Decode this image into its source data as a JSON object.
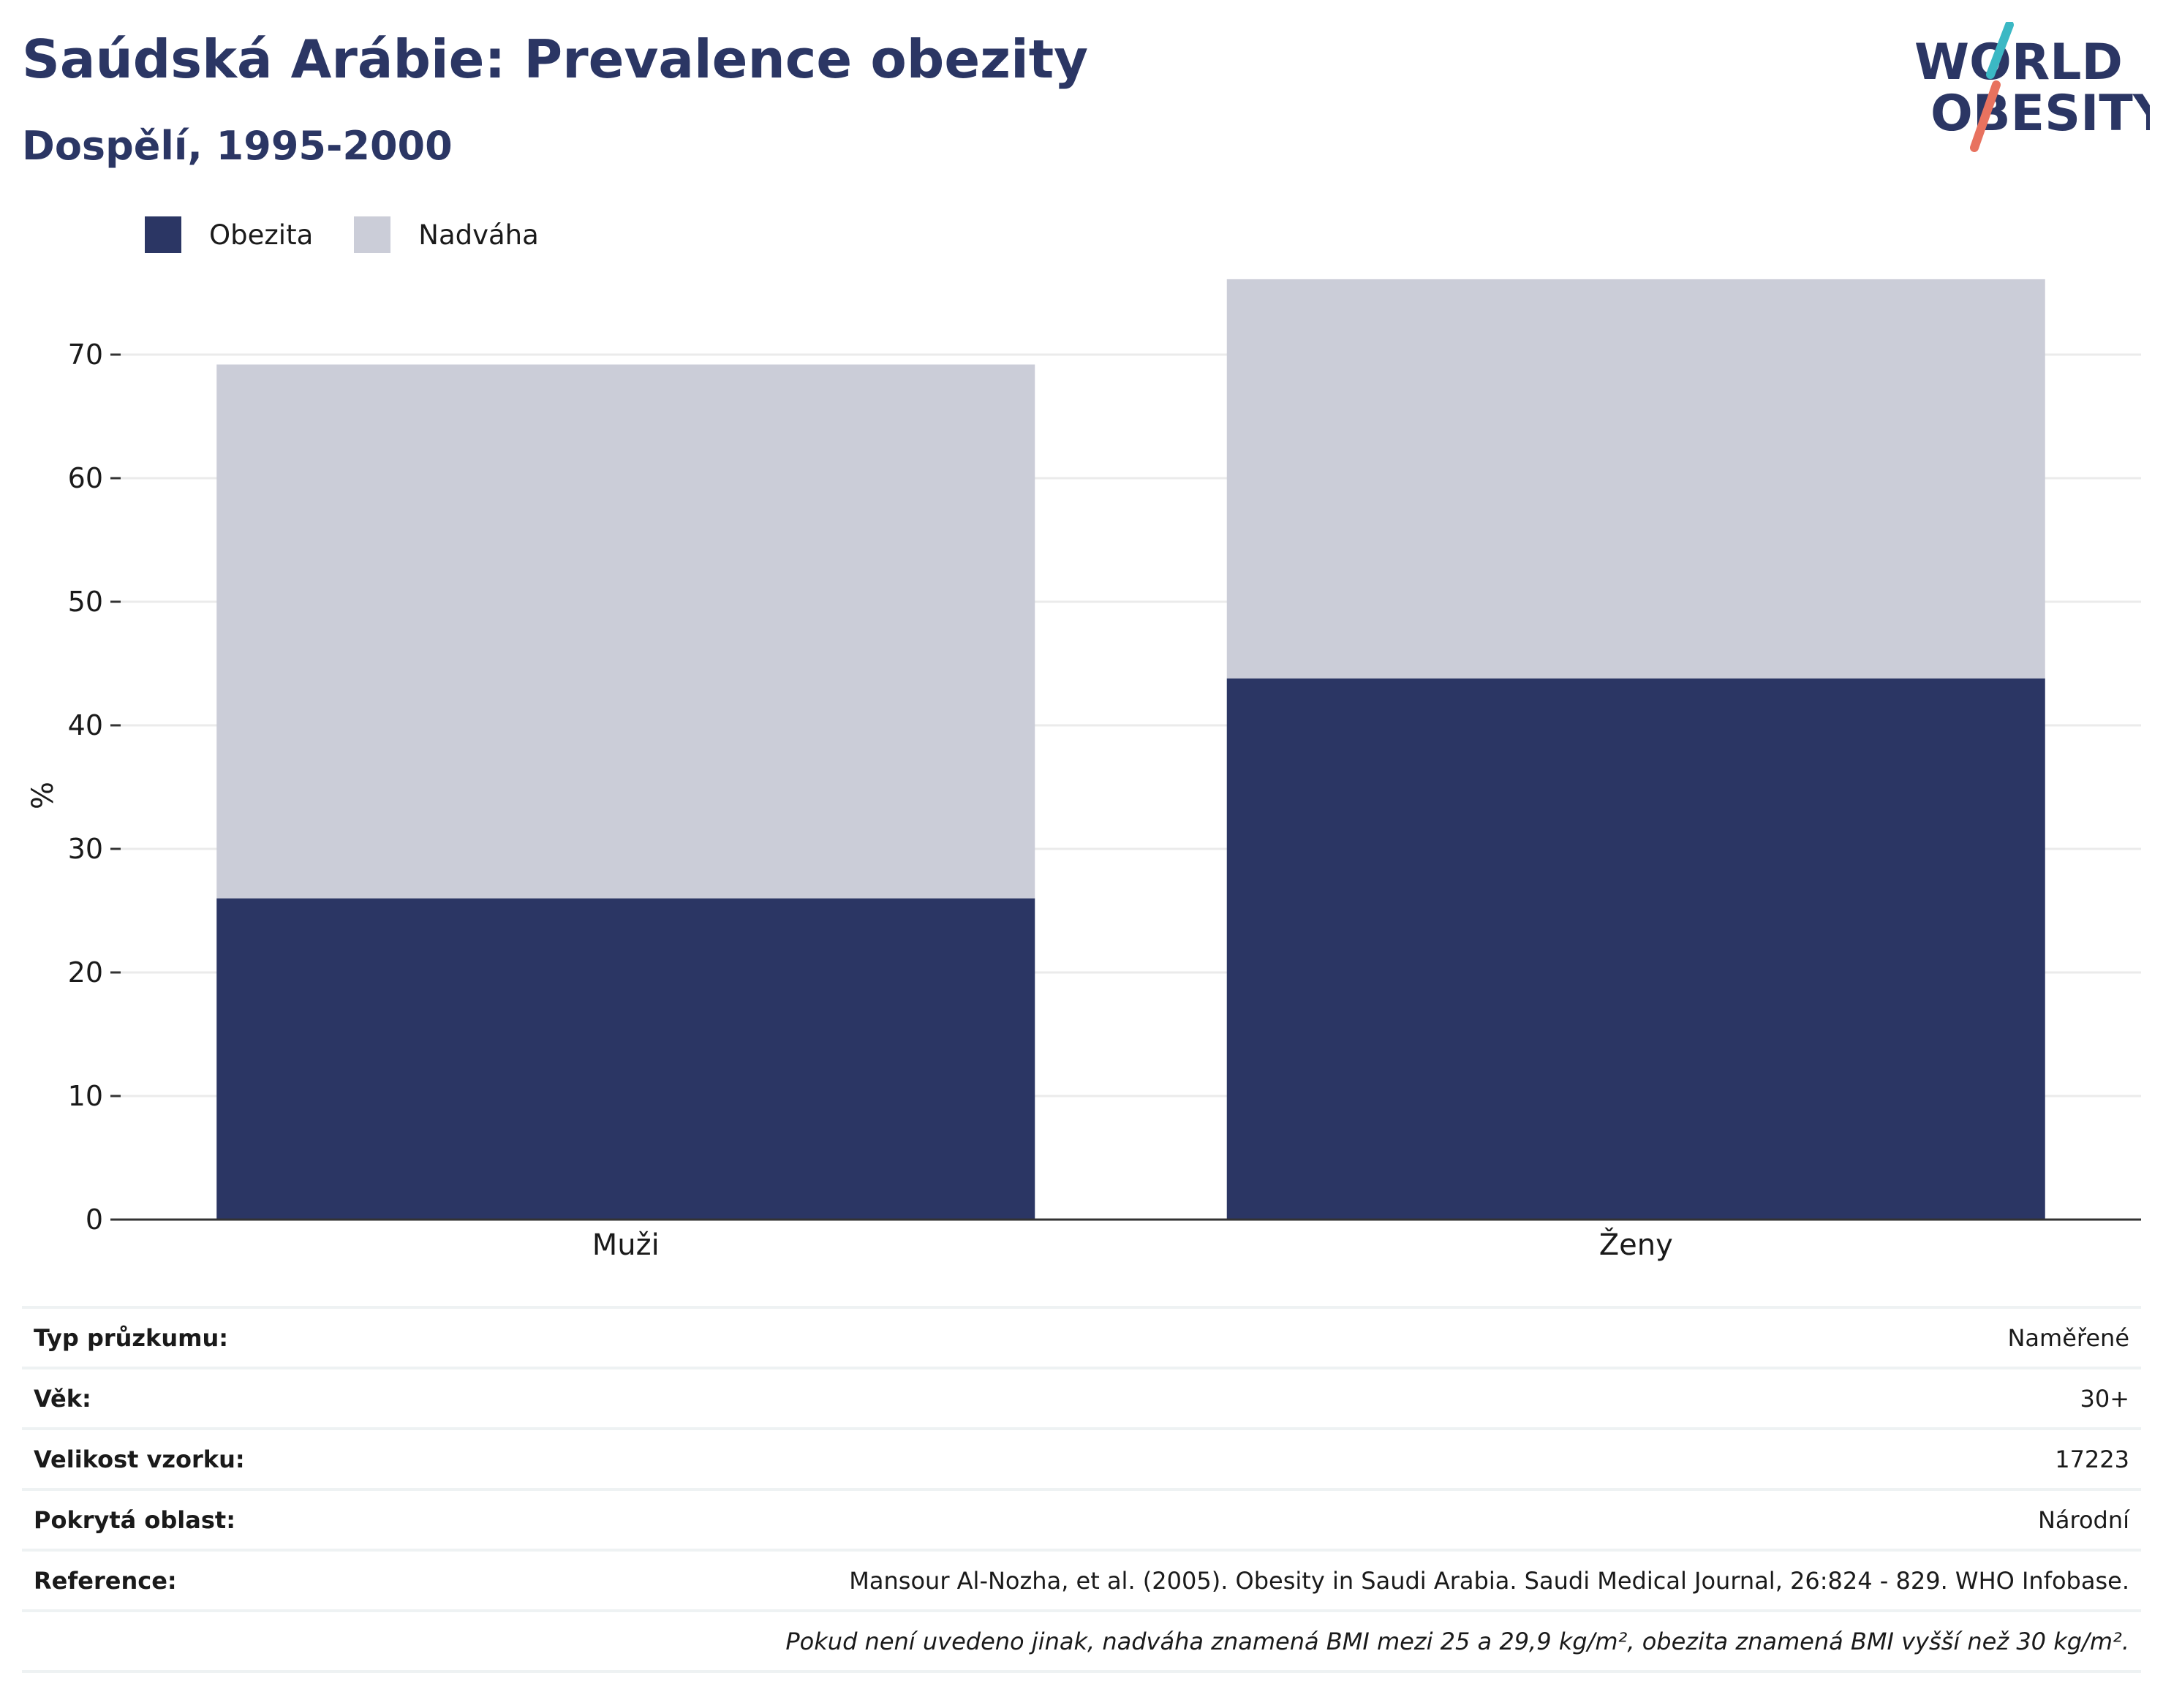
{
  "title": "Saúdská Arábie: Prevalence obezity",
  "subtitle": "Dospělí, 1995-2000",
  "logo": {
    "line1": "WORLD",
    "line2": "OBESITY"
  },
  "colors": {
    "obesity": "#2b3664",
    "overweight": "#cbcdd8",
    "accent_teal": "#3bb8c4",
    "accent_coral": "#e8725f"
  },
  "legend": [
    {
      "label": "Obezita",
      "color": "#2b3664"
    },
    {
      "label": "Nadváha",
      "color": "#cbcdd8"
    }
  ],
  "chart_data": {
    "type": "bar",
    "stacked": true,
    "categories": [
      "Muži",
      "Ženy"
    ],
    "series": [
      {
        "name": "Obezita",
        "values": [
          26,
          43.8
        ]
      },
      {
        "name": "Nadváha",
        "values": [
          43.2,
          32.3
        ]
      }
    ],
    "ylabel": "%",
    "yticks": [
      0,
      10,
      20,
      30,
      40,
      50,
      60,
      70
    ],
    "ylim": [
      0,
      80
    ],
    "grid": true,
    "legend_position": "top-left"
  },
  "meta": [
    {
      "key": "Typ průzkumu:",
      "value": "Naměřené"
    },
    {
      "key": "Věk:",
      "value": "30+"
    },
    {
      "key": "Velikost vzorku:",
      "value": "17223"
    },
    {
      "key": "Pokrytá oblast:",
      "value": "Národní"
    },
    {
      "key": "Reference:",
      "value": "Mansour Al-Nozha, et al. (2005). Obesity in Saudi Arabia. Saudi Medical Journal, 26:824 - 829. WHO Infobase."
    }
  ],
  "footnote": "Pokud není uvedeno jinak, nadváha znamená BMI mezi 25 a 29,9 kg/m², obezita znamená BMI vyšší než 30 kg/m²."
}
